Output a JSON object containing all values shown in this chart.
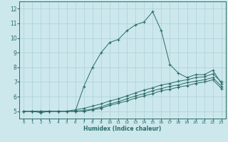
{
  "xlabel": "Humidex (Indice chaleur)",
  "bg_color": "#cce8ec",
  "grid_color": "#aad0d8",
  "line_color": "#2a6b65",
  "xlim": [
    -0.5,
    23.5
  ],
  "ylim": [
    4.5,
    12.5
  ],
  "xticks": [
    0,
    1,
    2,
    3,
    4,
    5,
    6,
    7,
    8,
    9,
    10,
    11,
    12,
    13,
    14,
    15,
    16,
    17,
    18,
    19,
    20,
    21,
    22,
    23
  ],
  "yticks": [
    5,
    6,
    7,
    8,
    9,
    10,
    11,
    12
  ],
  "line1_x": [
    0,
    1,
    2,
    3,
    4,
    5,
    6,
    7,
    8,
    9,
    10,
    11,
    12,
    13,
    14,
    15,
    16,
    17,
    18,
    19,
    20,
    21,
    22,
    23
  ],
  "line1_y": [
    5.0,
    5.0,
    4.9,
    5.0,
    5.0,
    5.0,
    5.0,
    6.7,
    8.0,
    9.0,
    9.7,
    9.9,
    10.5,
    10.9,
    11.1,
    11.8,
    10.5,
    8.2,
    7.6,
    7.3,
    7.5,
    7.5,
    7.8,
    6.9
  ],
  "line2_x": [
    0,
    1,
    2,
    3,
    4,
    5,
    6,
    7,
    8,
    9,
    10,
    11,
    12,
    13,
    14,
    15,
    16,
    17,
    18,
    19,
    20,
    21,
    22,
    23
  ],
  "line2_y": [
    5.0,
    5.0,
    5.0,
    5.0,
    5.0,
    5.0,
    5.1,
    5.2,
    5.35,
    5.5,
    5.7,
    5.85,
    6.05,
    6.25,
    6.45,
    6.6,
    6.8,
    6.9,
    7.05,
    7.15,
    7.3,
    7.35,
    7.55,
    7.0
  ],
  "line3_x": [
    0,
    1,
    2,
    3,
    4,
    5,
    6,
    7,
    8,
    9,
    10,
    11,
    12,
    13,
    14,
    15,
    16,
    17,
    18,
    19,
    20,
    21,
    22,
    23
  ],
  "line3_y": [
    5.0,
    5.0,
    5.0,
    5.0,
    5.0,
    5.0,
    5.0,
    5.05,
    5.15,
    5.3,
    5.5,
    5.65,
    5.85,
    6.05,
    6.2,
    6.4,
    6.55,
    6.7,
    6.8,
    6.95,
    7.05,
    7.15,
    7.3,
    6.7
  ],
  "line4_x": [
    0,
    1,
    2,
    3,
    4,
    5,
    6,
    7,
    8,
    9,
    10,
    11,
    12,
    13,
    14,
    15,
    16,
    17,
    18,
    19,
    20,
    21,
    22,
    23
  ],
  "line4_y": [
    5.0,
    5.0,
    5.0,
    5.0,
    5.0,
    5.0,
    5.0,
    5.0,
    5.1,
    5.2,
    5.4,
    5.55,
    5.7,
    5.9,
    6.05,
    6.2,
    6.4,
    6.5,
    6.65,
    6.75,
    6.9,
    7.0,
    7.15,
    6.55
  ]
}
